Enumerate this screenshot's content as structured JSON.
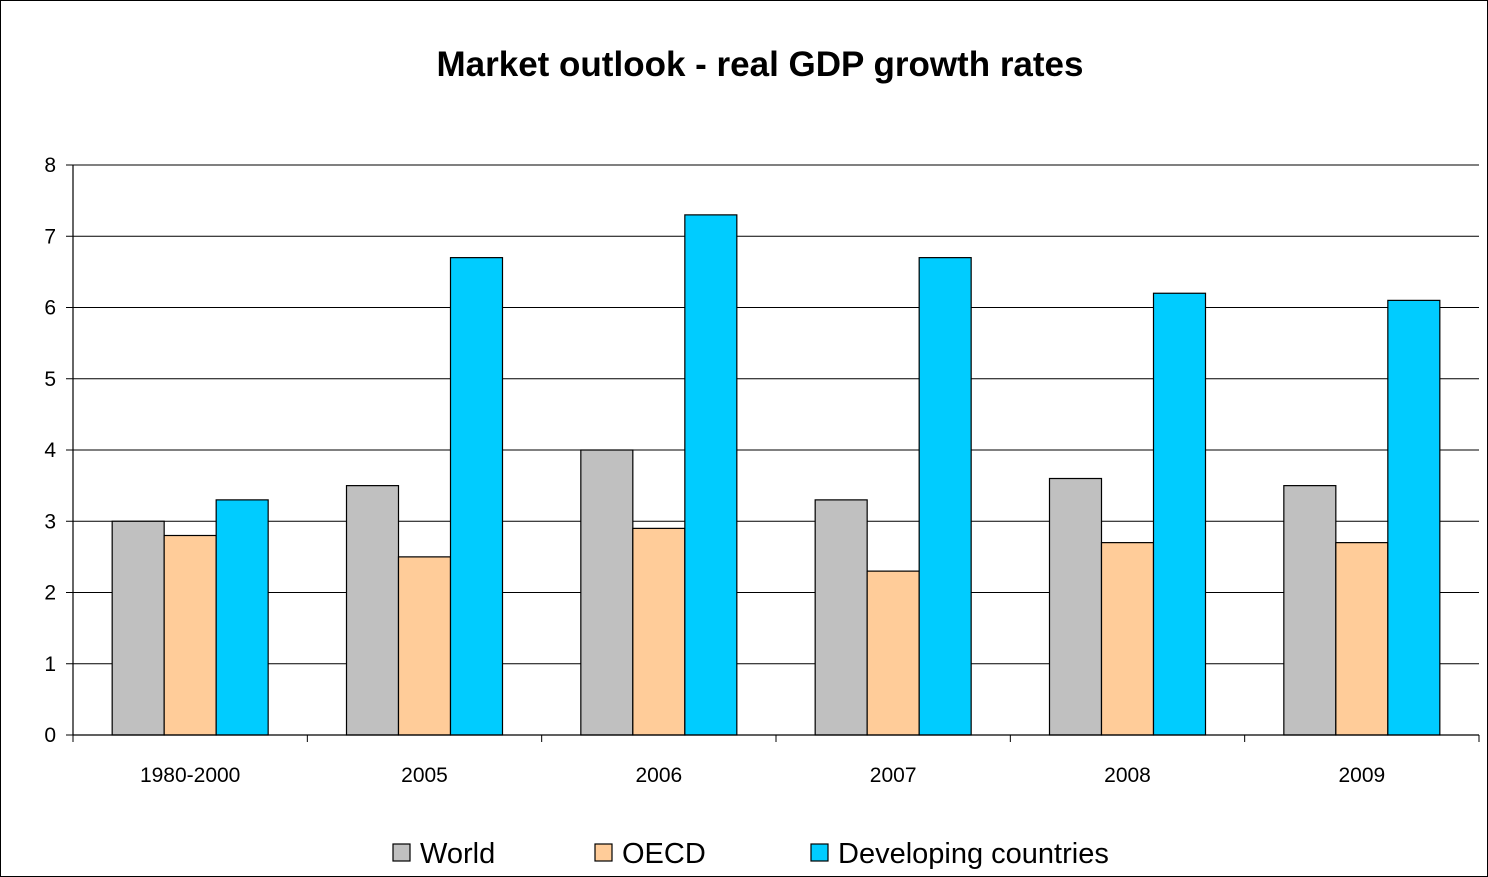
{
  "chart_data": {
    "type": "bar",
    "title": "Market outlook - real GDP growth rates",
    "xlabel": "",
    "ylabel": "",
    "categories": [
      "1980-2000",
      "2005",
      "2006",
      "2007",
      "2008",
      "2009"
    ],
    "series": [
      {
        "name": "World",
        "values": [
          3.0,
          3.5,
          4.0,
          3.3,
          3.6,
          3.5
        ],
        "color": "#c0c0c0"
      },
      {
        "name": "OECD",
        "values": [
          2.8,
          2.5,
          2.9,
          2.3,
          2.7,
          2.7
        ],
        "color": "#ffcc99"
      },
      {
        "name": "Developing countries",
        "values": [
          3.3,
          6.7,
          7.3,
          6.7,
          6.2,
          6.1
        ],
        "color": "#00ccff"
      }
    ],
    "ylim": [
      0,
      8
    ],
    "yticks": [
      "0",
      "1",
      "2",
      "3",
      "4",
      "5",
      "6",
      "7",
      "8"
    ],
    "grid": true,
    "legend_position": "bottom"
  }
}
